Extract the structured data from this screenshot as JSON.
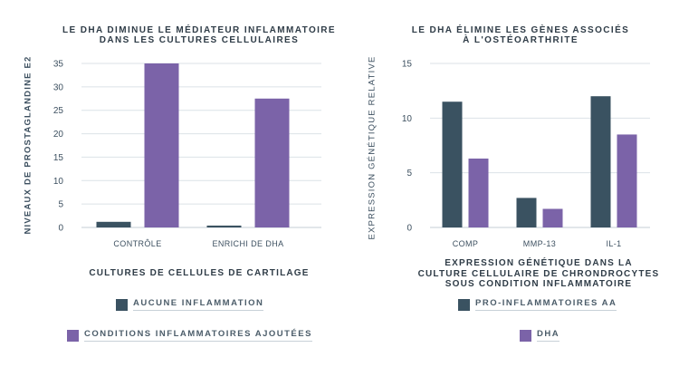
{
  "colors": {
    "series_a": "#3a5261",
    "series_b": "#7b63a8",
    "grid": "#dbe2e7",
    "axis": "#c4cdd4",
    "tick": "#3d5060"
  },
  "left_legend": [
    {
      "label": "AUCUNE INFLAMMATION",
      "color": "#3a5261"
    },
    {
      "label": "CONDITIONS INFLAMMATOIRES AJOUTÉES",
      "color": "#7b63a8"
    }
  ],
  "right_legend": [
    {
      "label": "PRO-INFLAMMATOIRES AA",
      "color": "#3a5261"
    },
    {
      "label": "DHA",
      "color": "#7b63a8"
    }
  ],
  "chart_data": [
    {
      "type": "bar",
      "title": [
        "LE DHA DIMINUE LE MÉDIATEUR INFLAMMATOIRE",
        "DANS LES CULTURES CELLULAIRES"
      ],
      "ylabel": "NIVEAUX DE PROSTAGLANDINE E2",
      "xlabel": [
        "CULTURES DE CELLULES DE CARTILAGE"
      ],
      "categories": [
        "CONTRÔLE",
        "ENRICHI DE DHA"
      ],
      "series": [
        {
          "name": "AUCUNE INFLAMMATION",
          "values": [
            1.2,
            0.4
          ]
        },
        {
          "name": "CONDITIONS INFLAMMATOIRES AJOUTÉES",
          "values": [
            35,
            27.5
          ]
        }
      ],
      "yticks": [
        0,
        5,
        10,
        15,
        20,
        25,
        30,
        35
      ],
      "ylim": [
        0,
        35
      ]
    },
    {
      "type": "bar",
      "title": [
        "LE DHA ÉLIMINE LES GÈNES ASSOCIÉS",
        "À L'OSTÉOARTHRITE"
      ],
      "ylabel": "EXPRESSION GÉNÉTIQUE RELATIVE",
      "xlabel": [
        "EXPRESSION GÉNÉTIQUE DANS LA",
        "CULTURE CELLULAIRE DE CHRONDROCYTES",
        "SOUS CONDITION INFLAMMATOIRE"
      ],
      "categories": [
        "COMP",
        "MMP-13",
        "IL-1"
      ],
      "series": [
        {
          "name": "PRO-INFLAMMATOIRES AA",
          "values": [
            11.5,
            2.7,
            12
          ]
        },
        {
          "name": "DHA",
          "values": [
            6.3,
            1.7,
            8.5
          ]
        }
      ],
      "yticks": [
        0,
        5,
        10,
        15
      ],
      "ylim": [
        0,
        15
      ]
    }
  ]
}
